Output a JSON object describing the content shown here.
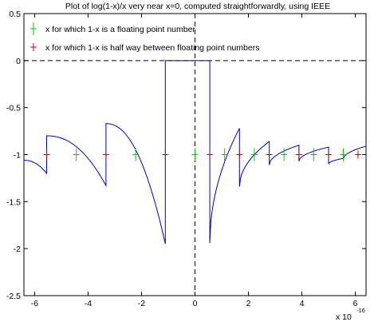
{
  "chart_data": {
    "type": "line",
    "title": "Plot of log(1-x)/x very near x=0, computed straightforwardly, using IEEE",
    "xlabel": "",
    "ylabel": "",
    "x_scale_label": "x 10",
    "x_scale_exponent": "-16",
    "xlim": [
      -6.4,
      6.4
    ],
    "ylim": [
      -2.5,
      0.5
    ],
    "xticks": [
      -6,
      -4,
      -2,
      0,
      2,
      4,
      6
    ],
    "yticks": [
      0.5,
      0,
      -0.5,
      -1,
      -1.5,
      -2,
      -2.5
    ],
    "xtick_labels": [
      "-6",
      "-4",
      "-2",
      "0",
      "2",
      "4",
      "6"
    ],
    "ytick_labels": [
      "0.5",
      "0",
      "-0.5",
      "-1",
      "-1.5",
      "-2",
      "-2.5"
    ],
    "grid": false,
    "legend_position": "top-left",
    "reference_lines": [
      {
        "orientation": "horizontal",
        "y": 0,
        "style": "dashed",
        "color": "#000000"
      },
      {
        "orientation": "vertical",
        "x": 0,
        "style": "dashed",
        "color": "#000000"
      }
    ],
    "curve": {
      "color": "#0000c0",
      "segments": [
        {
          "x": [
            -6.4,
            -5.55
          ],
          "y": [
            -1.06,
            -1.2
          ]
        },
        {
          "x": [
            -5.55,
            -3.33
          ],
          "y": [
            -0.8,
            -1.33
          ]
        },
        {
          "x": [
            -3.33,
            -1.11
          ],
          "y": [
            -0.67,
            -1.95
          ]
        },
        {
          "x": [
            -1.11,
            0.555
          ],
          "y": [
            0,
            0
          ]
        },
        {
          "x": [
            0.555,
            1.665
          ],
          "y": [
            -1.94,
            -0.72
          ]
        },
        {
          "x": [
            1.665,
            2.78
          ],
          "y": [
            -1.34,
            -0.86
          ]
        },
        {
          "x": [
            2.78,
            3.89
          ],
          "y": [
            -1.11,
            -0.9
          ]
        },
        {
          "x": [
            3.89,
            5.0
          ],
          "y": [
            -1.07,
            -0.92
          ]
        },
        {
          "x": [
            5.0,
            5.55
          ],
          "y": [
            -1.1,
            -1.04
          ]
        },
        {
          "x": [
            5.55,
            6.4
          ],
          "y": [
            -1.05,
            -0.91
          ]
        }
      ]
    },
    "series": [
      {
        "name": "x for which 1-x is a floating point number",
        "color": "#00cc00",
        "points": [
          {
            "x": -4.44,
            "y": -1
          },
          {
            "x": -2.22,
            "y": -1
          },
          {
            "x": 0,
            "y": -1
          },
          {
            "x": 1.11,
            "y": -1
          },
          {
            "x": 2.22,
            "y": -1
          },
          {
            "x": 3.33,
            "y": -1
          },
          {
            "x": 4.44,
            "y": -1
          },
          {
            "x": 5.55,
            "y": -1
          }
        ]
      },
      {
        "name": "x for which 1-x is half way between floating point numbers",
        "color": "#cc0000",
        "points": [
          {
            "x": -5.55,
            "y": -1
          },
          {
            "x": -3.33,
            "y": -1
          },
          {
            "x": -1.11,
            "y": -1
          },
          {
            "x": 0.555,
            "y": -1
          },
          {
            "x": 1.665,
            "y": -1
          },
          {
            "x": 2.78,
            "y": -1
          },
          {
            "x": 3.89,
            "y": -1
          },
          {
            "x": 5.0,
            "y": -1
          },
          {
            "x": 6.1,
            "y": -1
          }
        ]
      }
    ]
  }
}
